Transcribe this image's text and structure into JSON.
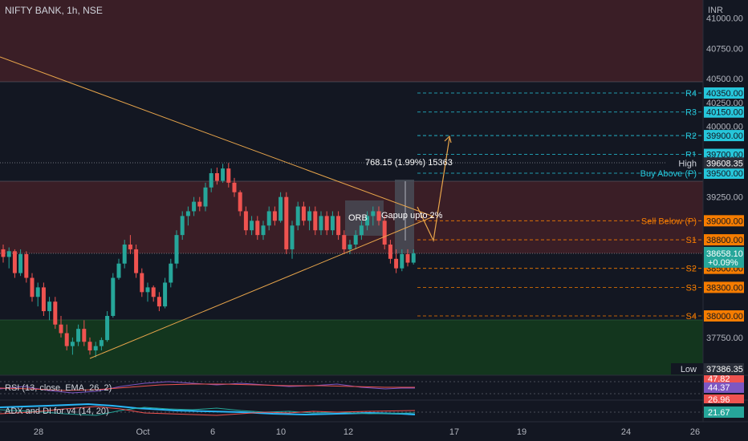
{
  "header": {
    "symbol_line": "NIFTY BANK, 1h, NSE",
    "currency": "INR"
  },
  "colors": {
    "background": "#131722",
    "up": "#26a69a",
    "down": "#ef5350",
    "red_zone": "#3a1e26",
    "green_zone": "#13361e",
    "trendline": "#e8a54b",
    "cyan_level": "#26c6da",
    "orange_level": "#f57c00",
    "orb_box": "#4a4f5a"
  },
  "price_axis": {
    "ticks": [
      "41000.00",
      "40750.00",
      "40500.00",
      "40250.00",
      "40000.00",
      "39250.00",
      "37750.00"
    ]
  },
  "time_axis": {
    "labels": [
      "28",
      "Oct",
      "6",
      "10",
      "12",
      "17",
      "19",
      "24",
      "26"
    ]
  },
  "levels": [
    {
      "name": "R4",
      "value": "40350.00",
      "kind": "cyan"
    },
    {
      "name": "R3",
      "value": "40150.00",
      "kind": "cyan"
    },
    {
      "name": "R2",
      "value": "39900.00",
      "kind": "cyan"
    },
    {
      "name": "R1",
      "value": "39700.00",
      "kind": "cyan"
    },
    {
      "name": "Buy Above (P)",
      "value": "39500.00",
      "kind": "cyan"
    },
    {
      "name": "Sell Below (P)",
      "value": "39000.00",
      "kind": "orange"
    },
    {
      "name": "S1",
      "value": "38800.00",
      "kind": "orange"
    },
    {
      "name": "S2",
      "value": "38500.00",
      "kind": "orange"
    },
    {
      "name": "S3",
      "value": "38300.00",
      "kind": "orange"
    },
    {
      "name": "S4",
      "value": "38000.00",
      "kind": "orange"
    }
  ],
  "markers": {
    "high_label": "High",
    "high_value": "39608.35",
    "low_label": "Low",
    "low_value": "37386.35",
    "last_price": "38658.10",
    "last_change": "+0.09%"
  },
  "annotations": {
    "measure": "768.15 (1.99%) 15363",
    "orb": "ORB",
    "gapup": "Gapup upto 2%"
  },
  "indicators": {
    "rsi_label": "RSI (13, close, EMA, 26, 2)",
    "rsi_value": "44.37",
    "rsi_value_2": "47.82",
    "adx_label": "ADX and DI for v4 (14, 20)",
    "adx_value": "21.67",
    "adx_value_2": "26.96"
  },
  "chart_data": {
    "type": "candlestick",
    "title": "NIFTY BANK, 1h, NSE",
    "ylim": [
      37386.35,
      41150
    ],
    "candles": [
      [
        38700,
        38750,
        38560,
        38620
      ],
      [
        38620,
        38720,
        38500,
        38680
      ],
      [
        38680,
        38700,
        38400,
        38450
      ],
      [
        38450,
        38700,
        38420,
        38650
      ],
      [
        38650,
        38680,
        38350,
        38400
      ],
      [
        38400,
        38450,
        38150,
        38200
      ],
      [
        38200,
        38350,
        38100,
        38300
      ],
      [
        38300,
        38350,
        38000,
        38050
      ],
      [
        38050,
        38200,
        37950,
        38150
      ],
      [
        38150,
        38200,
        37850,
        37900
      ],
      [
        37900,
        38000,
        37750,
        37800
      ],
      [
        37800,
        37900,
        37600,
        37650
      ],
      [
        37650,
        37750,
        37550,
        37700
      ],
      [
        37700,
        37900,
        37650,
        37850
      ],
      [
        37850,
        37950,
        37650,
        37700
      ],
      [
        37700,
        37750,
        37550,
        37600
      ],
      [
        37600,
        37700,
        37520,
        37650
      ],
      [
        37650,
        37750,
        37600,
        37720
      ],
      [
        37720,
        38050,
        37700,
        38000
      ],
      [
        38000,
        38450,
        37980,
        38400
      ],
      [
        38400,
        38600,
        38380,
        38550
      ],
      [
        38550,
        38800,
        38500,
        38750
      ],
      [
        38750,
        38850,
        38650,
        38700
      ],
      [
        38700,
        38750,
        38400,
        38450
      ],
      [
        38450,
        38500,
        38200,
        38250
      ],
      [
        38250,
        38350,
        38150,
        38300
      ],
      [
        38300,
        38320,
        38150,
        38200
      ],
      [
        38200,
        38250,
        38050,
        38100
      ],
      [
        38100,
        38400,
        38080,
        38350
      ],
      [
        38350,
        38600,
        38300,
        38550
      ],
      [
        38550,
        38900,
        38500,
        38850
      ],
      [
        38850,
        39100,
        38800,
        39050
      ],
      [
        39050,
        39150,
        38950,
        39100
      ],
      [
        39100,
        39250,
        39050,
        39200
      ],
      [
        39200,
        39250,
        39100,
        39150
      ],
      [
        39150,
        39400,
        39100,
        39350
      ],
      [
        39350,
        39550,
        39300,
        39500
      ],
      [
        39500,
        39560,
        39380,
        39420
      ],
      [
        39420,
        39600,
        39400,
        39550
      ],
      [
        39550,
        39608,
        39350,
        39400
      ],
      [
        39400,
        39450,
        39250,
        39300
      ],
      [
        39300,
        39320,
        39050,
        39100
      ],
      [
        39100,
        39150,
        38850,
        38900
      ],
      [
        38900,
        39050,
        38850,
        39000
      ],
      [
        39000,
        39050,
        38800,
        38850
      ],
      [
        38850,
        39000,
        38800,
        38950
      ],
      [
        38950,
        39150,
        38900,
        39100
      ],
      [
        39100,
        39150,
        38950,
        39000
      ],
      [
        39000,
        39300,
        38980,
        39250
      ],
      [
        39250,
        39300,
        38650,
        38700
      ],
      [
        38700,
        39000,
        38600,
        38950
      ],
      [
        38950,
        39200,
        38900,
        39150
      ],
      [
        39150,
        39200,
        38950,
        39000
      ],
      [
        39000,
        39150,
        38900,
        39100
      ],
      [
        39100,
        39150,
        38850,
        38900
      ],
      [
        38900,
        39100,
        38850,
        39050
      ],
      [
        39050,
        39100,
        38850,
        38900
      ],
      [
        38900,
        39100,
        38850,
        39050
      ],
      [
        39050,
        39100,
        38800,
        38850
      ],
      [
        38850,
        38900,
        38650,
        38700
      ],
      [
        38700,
        38800,
        38650,
        38750
      ],
      [
        38750,
        38900,
        38700,
        38850
      ],
      [
        38850,
        39000,
        38800,
        38950
      ],
      [
        38950,
        39100,
        38900,
        39050
      ],
      [
        39050,
        39150,
        38950,
        39100
      ],
      [
        39100,
        39150,
        38950,
        39000
      ],
      [
        39000,
        39050,
        38700,
        38750
      ],
      [
        38750,
        38800,
        38550,
        38600
      ],
      [
        38600,
        38700,
        38450,
        38500
      ],
      [
        38500,
        38700,
        38470,
        38650
      ],
      [
        38650,
        38700,
        38520,
        38560
      ],
      [
        38560,
        38700,
        38540,
        38658.1
      ]
    ]
  }
}
